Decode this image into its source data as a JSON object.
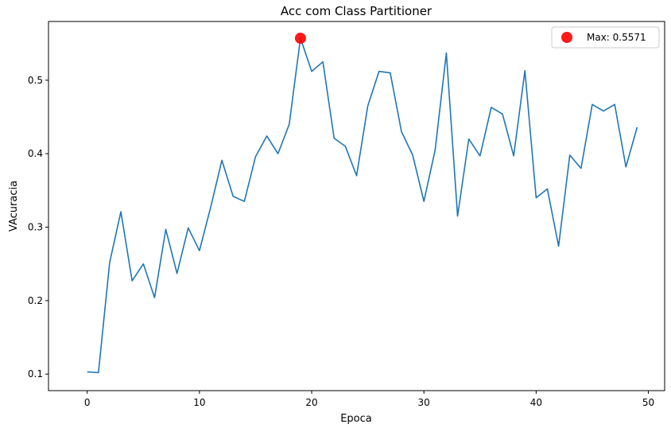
{
  "chart_data": {
    "type": "line",
    "title": "Acc com Class Partitioner",
    "xlabel": "Epoca",
    "ylabel": "VAcuracia",
    "xlim": [
      -3.45,
      51.45
    ],
    "ylim": [
      0.0775,
      0.5799
    ],
    "xticks": [
      0,
      10,
      20,
      30,
      40,
      50
    ],
    "yticks": [
      0.1,
      0.2,
      0.3,
      0.4,
      0.5
    ],
    "xtick_labels": [
      "0",
      "10",
      "20",
      "30",
      "40",
      "50"
    ],
    "ytick_labels": [
      "0.1",
      "0.2",
      "0.3",
      "0.4",
      "0.5"
    ],
    "grid": false,
    "legend_position": "top-right",
    "series": [
      {
        "color": "#1f77b4",
        "x": [
          0,
          1,
          2,
          3,
          4,
          5,
          6,
          7,
          8,
          9,
          10,
          11,
          12,
          13,
          14,
          15,
          16,
          17,
          18,
          19,
          20,
          21,
          22,
          23,
          24,
          25,
          26,
          27,
          28,
          29,
          30,
          31,
          32,
          33,
          34,
          35,
          36,
          37,
          38,
          39,
          40,
          41,
          42,
          43,
          44,
          45,
          46,
          47,
          48,
          49
        ],
        "y": [
          0.103,
          0.102,
          0.252,
          0.321,
          0.227,
          0.25,
          0.204,
          0.297,
          0.237,
          0.299,
          0.268,
          0.327,
          0.391,
          0.342,
          0.335,
          0.396,
          0.424,
          0.4,
          0.44,
          0.5571,
          0.512,
          0.525,
          0.421,
          0.41,
          0.37,
          0.465,
          0.512,
          0.51,
          0.43,
          0.398,
          0.335,
          0.405,
          0.537,
          0.315,
          0.42,
          0.397,
          0.463,
          0.454,
          0.397,
          0.513,
          0.34,
          0.352,
          0.274,
          0.398,
          0.38,
          0.467,
          0.458,
          0.467,
          0.382,
          0.436
        ]
      }
    ],
    "max_marker": {
      "x": 19,
      "y": 0.5571,
      "color": "#ff0000",
      "label": "Max: 0.5571"
    }
  }
}
